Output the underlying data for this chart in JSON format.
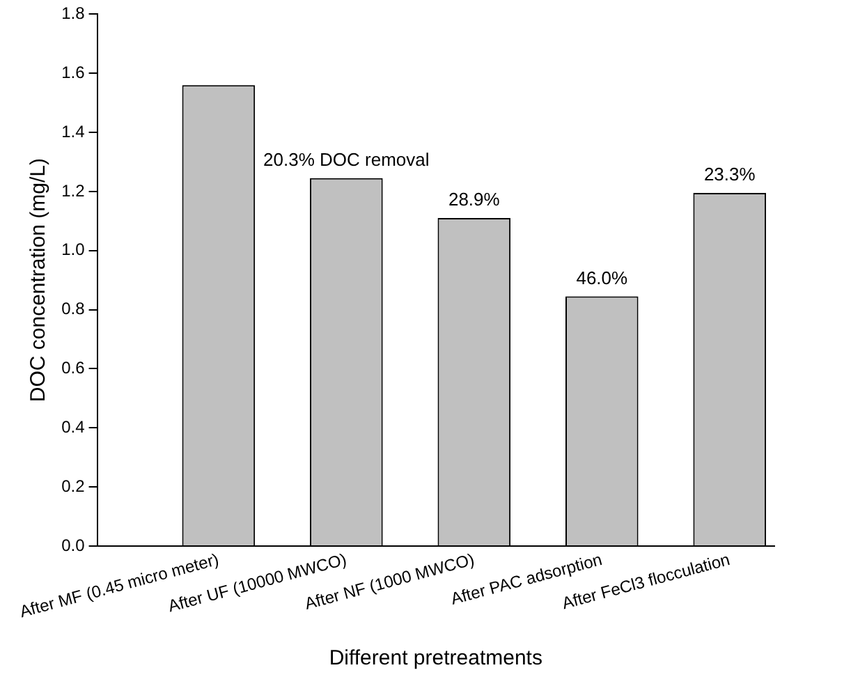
{
  "chart_data": {
    "type": "bar",
    "xlabel": "Different pretreatments",
    "ylabel": "DOC concentration (mg/L)",
    "categories": [
      "After MF (0.45 micro meter)",
      "After UF (10000 MWCO)",
      "After NF (1000 MWCO)",
      "After PAC adsorption",
      "After FeCl3 flocculation"
    ],
    "values": [
      1.56,
      1.245,
      1.11,
      0.845,
      1.195
    ],
    "color": "#c0c0c0",
    "ylim": [
      0,
      1.8
    ],
    "yticks": [
      {
        "value": 0,
        "label": "0.0"
      },
      {
        "value": 0.2,
        "label": "0.2"
      },
      {
        "value": 0.4,
        "label": "0.4"
      },
      {
        "value": 0.6,
        "label": "0.6"
      },
      {
        "value": 0.8,
        "label": "0.8"
      },
      {
        "value": 1,
        "label": "1.0"
      },
      {
        "value": 1.2,
        "label": "1.2"
      },
      {
        "value": 1.4,
        "label": "1.4"
      },
      {
        "value": 1.6,
        "label": "1.6"
      },
      {
        "value": 1.8,
        "label": "1.8"
      }
    ],
    "grid": false,
    "legend": false,
    "annotations": [
      {
        "text": "20.3% DOC removal",
        "x": "After UF (10000 MWCO)",
        "y": 1.245
      },
      {
        "text": "28.9%",
        "x": "After NF (1000 MWCO)",
        "y": 1.11
      },
      {
        "text": "46.0%",
        "x": "After PAC adsorption",
        "y": 0.845
      },
      {
        "text": "23.3%",
        "x": "After FeCl3 flocculation",
        "y": 1.195
      }
    ]
  }
}
